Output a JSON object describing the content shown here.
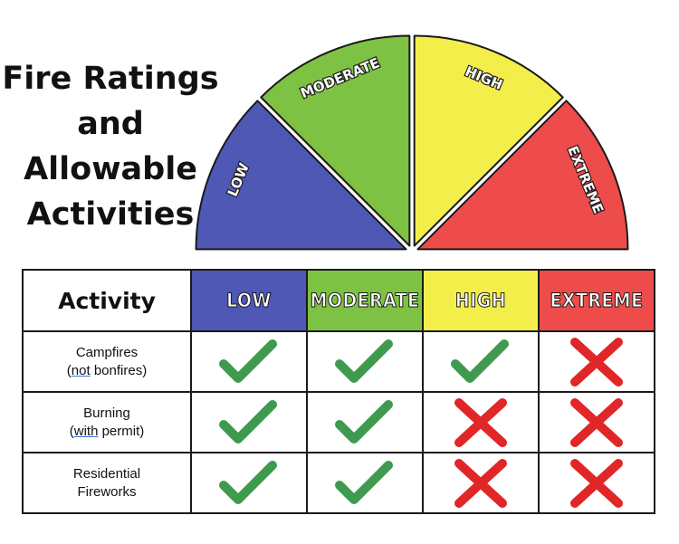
{
  "title_lines": [
    "Fire Ratings",
    "and",
    "Allowable",
    "Activities"
  ],
  "levels": [
    {
      "label": "LOW",
      "color": "#4f58b5"
    },
    {
      "label": "MODERATE",
      "color": "#7dc242"
    },
    {
      "label": "HIGH",
      "color": "#f4ee4b"
    },
    {
      "label": "EXTREME",
      "color": "#ee4b4b"
    }
  ],
  "table": {
    "activity_header": "Activity",
    "headers": [
      "LOW",
      "MODERATE",
      "HIGH",
      "EXTREME"
    ],
    "rows": [
      {
        "line1": "Campfires",
        "line2_open": "(",
        "line2_underlined": "not",
        "line2_rest": " bonfires)",
        "allowed": [
          true,
          true,
          true,
          false
        ]
      },
      {
        "line1": "Burning",
        "line2_open": "(",
        "line2_underlined": "with",
        "line2_rest": " permit)",
        "allowed": [
          true,
          true,
          false,
          false
        ]
      },
      {
        "line1": "Residential",
        "line2_open": "",
        "line2_underlined": "",
        "line2_rest": "Fireworks",
        "allowed": [
          true,
          true,
          false,
          false
        ]
      }
    ]
  },
  "colors": {
    "check": "#3f9a50",
    "cross": "#e02626"
  }
}
